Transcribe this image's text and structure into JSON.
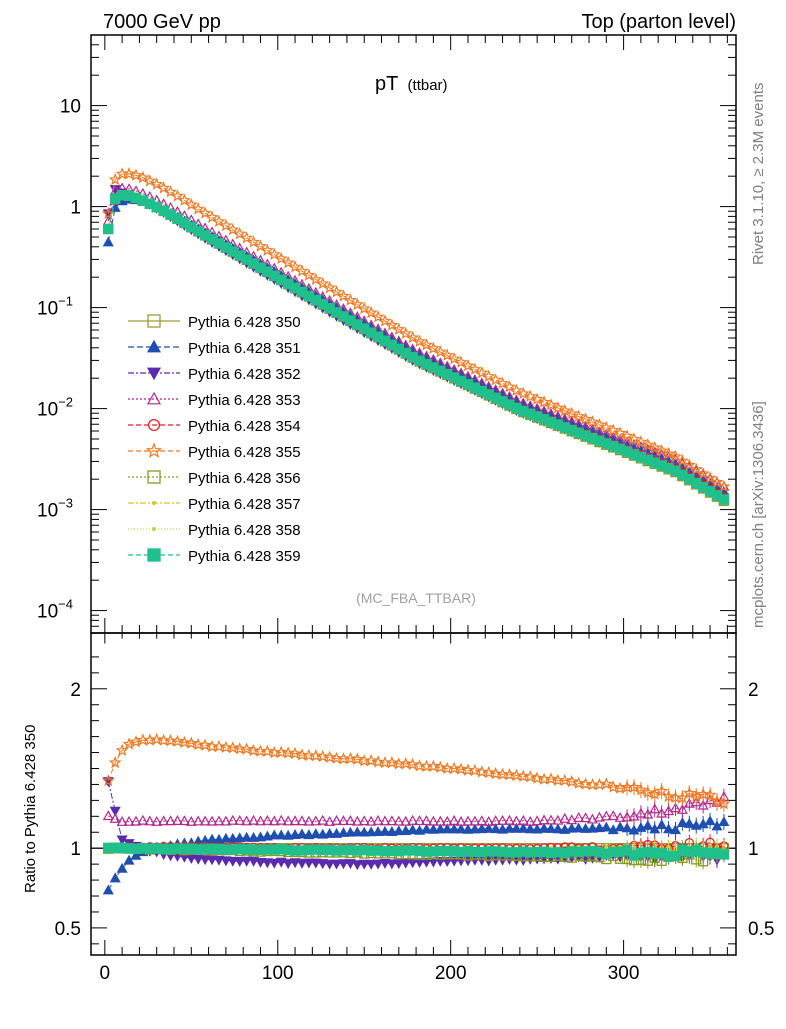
{
  "header": {
    "left": "7000 GeV pp",
    "right": "Top (parton level)"
  },
  "side": {
    "rivet": "Rivet 3.1.10, ≥ 2.3M events",
    "mcplots": "mcplots.cern.ch [arXiv:1306.3436]"
  },
  "chart_data": {
    "type": "scatter",
    "title": "pT",
    "title_sub": "(ttbar)",
    "watermark": "(MC_FBA_TTBAR)",
    "xlim": [
      -8,
      365
    ],
    "x_ticks": [
      0,
      100,
      200,
      300
    ],
    "main": {
      "yscale": "log",
      "ylim": [
        6e-05,
        50
      ],
      "y_ticks": [
        {
          "value": 10,
          "label": "10",
          "exp": ""
        },
        {
          "value": 1,
          "label": "1",
          "exp": ""
        },
        {
          "value": 0.1,
          "label": "10",
          "exp": "−1"
        },
        {
          "value": 0.01,
          "label": "10",
          "exp": "−2"
        },
        {
          "value": 0.001,
          "label": "10",
          "exp": "−3"
        },
        {
          "value": 0.0001,
          "label": "10",
          "exp": "−4"
        }
      ],
      "reference_curve": {
        "x": [
          2,
          6,
          10,
          14,
          18,
          22,
          26,
          30,
          34,
          40,
          50,
          60,
          80,
          100,
          120,
          150,
          180,
          210,
          240,
          270,
          300,
          330,
          358
        ],
        "y": [
          0.6,
          1.2,
          1.3,
          1.28,
          1.22,
          1.15,
          1.07,
          0.99,
          0.91,
          0.8,
          0.63,
          0.5,
          0.316,
          0.2,
          0.126,
          0.063,
          0.0316,
          0.0178,
          0.01,
          0.0063,
          0.004,
          0.0025,
          0.0013
        ]
      }
    },
    "ratio": {
      "ylabel": "Ratio to Pythia 6.428 350",
      "ylim": [
        0.33,
        2.35
      ],
      "y_ticks": [
        {
          "value": 0.5,
          "label": "0.5"
        },
        {
          "value": 1,
          "label": "1"
        },
        {
          "value": 2,
          "label": "2"
        }
      ]
    },
    "series": [
      {
        "name": "Pythia 6.428 350",
        "color": "#a09a32",
        "marker": "square-open",
        "dash": "none",
        "ratio": {
          "x": [
            0,
            360
          ],
          "y": [
            1.0,
            1.0
          ]
        },
        "scale": 1.0
      },
      {
        "name": "Pythia 6.428 351",
        "color": "#1f4fb0",
        "marker": "triangle-up",
        "dash": "6,3",
        "ratio": {
          "x": [
            2,
            8,
            14,
            20,
            30,
            40,
            60,
            100,
            150,
            200,
            250,
            300,
            358
          ],
          "y": [
            0.74,
            0.85,
            0.92,
            0.97,
            1.0,
            1.02,
            1.05,
            1.08,
            1.1,
            1.12,
            1.12,
            1.12,
            1.15
          ]
        },
        "scale": 0.75
      },
      {
        "name": "Pythia 6.428 352",
        "color": "#5a2ab0",
        "marker": "triangle-down",
        "dash": "6,2,2,2",
        "ratio": {
          "x": [
            2,
            10,
            20,
            40,
            60,
            100,
            150,
            200,
            250,
            300,
            358
          ],
          "y": [
            1.42,
            1.05,
            1.0,
            0.95,
            0.93,
            0.91,
            0.9,
            0.92,
            0.93,
            0.95,
            0.95
          ]
        },
        "scale": 1.2
      },
      {
        "name": "Pythia 6.428 353",
        "color": "#b4288c",
        "marker": "triangle-open",
        "dash": "2,2",
        "ratio": {
          "x": [
            2,
            10,
            40,
            100,
            150,
            200,
            250,
            300,
            358
          ],
          "y": [
            1.2,
            1.17,
            1.17,
            1.17,
            1.17,
            1.17,
            1.17,
            1.2,
            1.3
          ]
        },
        "scale": 1.17
      },
      {
        "name": "Pythia 6.428 354",
        "color": "#e0202a",
        "marker": "circle-open",
        "dash": "5,3",
        "ratio": {
          "x": [
            2,
            50,
            100,
            150,
            200,
            250,
            300,
            358
          ],
          "y": [
            1.0,
            1.01,
            1.0,
            1.0,
            1.0,
            1.0,
            1.0,
            1.02
          ]
        },
        "scale": 1.0
      },
      {
        "name": "Pythia 6.428 355",
        "color": "#f07820",
        "marker": "star-open",
        "dash": "5,3",
        "ratio": {
          "x": [
            2,
            8,
            14,
            20,
            30,
            40,
            60,
            100,
            150,
            200,
            250,
            300,
            358
          ],
          "y": [
            1.42,
            1.6,
            1.65,
            1.68,
            1.68,
            1.67,
            1.64,
            1.6,
            1.55,
            1.5,
            1.44,
            1.38,
            1.3
          ]
        },
        "scale": 1.6
      },
      {
        "name": "Pythia 6.428 356",
        "color": "#8a9a20",
        "marker": "square-open",
        "dash": "2,2",
        "ratio": {
          "x": [
            2,
            100,
            200,
            300,
            358
          ],
          "y": [
            1.0,
            0.98,
            0.96,
            0.94,
            0.94
          ]
        },
        "scale": 0.98
      },
      {
        "name": "Pythia 6.428 357",
        "color": "#e0c020",
        "marker": "dot",
        "dash": "6,2,2,2",
        "ratio": {
          "x": [
            2,
            100,
            200,
            300,
            358
          ],
          "y": [
            1.0,
            0.99,
            0.98,
            0.98,
            0.98
          ]
        },
        "scale": 0.99
      },
      {
        "name": "Pythia 6.428 358",
        "color": "#c8d040",
        "marker": "dot",
        "dash": "1,2",
        "ratio": {
          "x": [
            2,
            100,
            200,
            300,
            358
          ],
          "y": [
            1.0,
            0.99,
            0.99,
            1.0,
            1.0
          ]
        },
        "scale": 0.99
      },
      {
        "name": "Pythia 6.428 359",
        "color": "#20c08c",
        "marker": "square",
        "dash": "5,3",
        "ratio": {
          "x": [
            2,
            100,
            200,
            300,
            358
          ],
          "y": [
            1.0,
            0.99,
            0.98,
            0.97,
            0.97
          ]
        },
        "scale": 0.98
      }
    ]
  }
}
